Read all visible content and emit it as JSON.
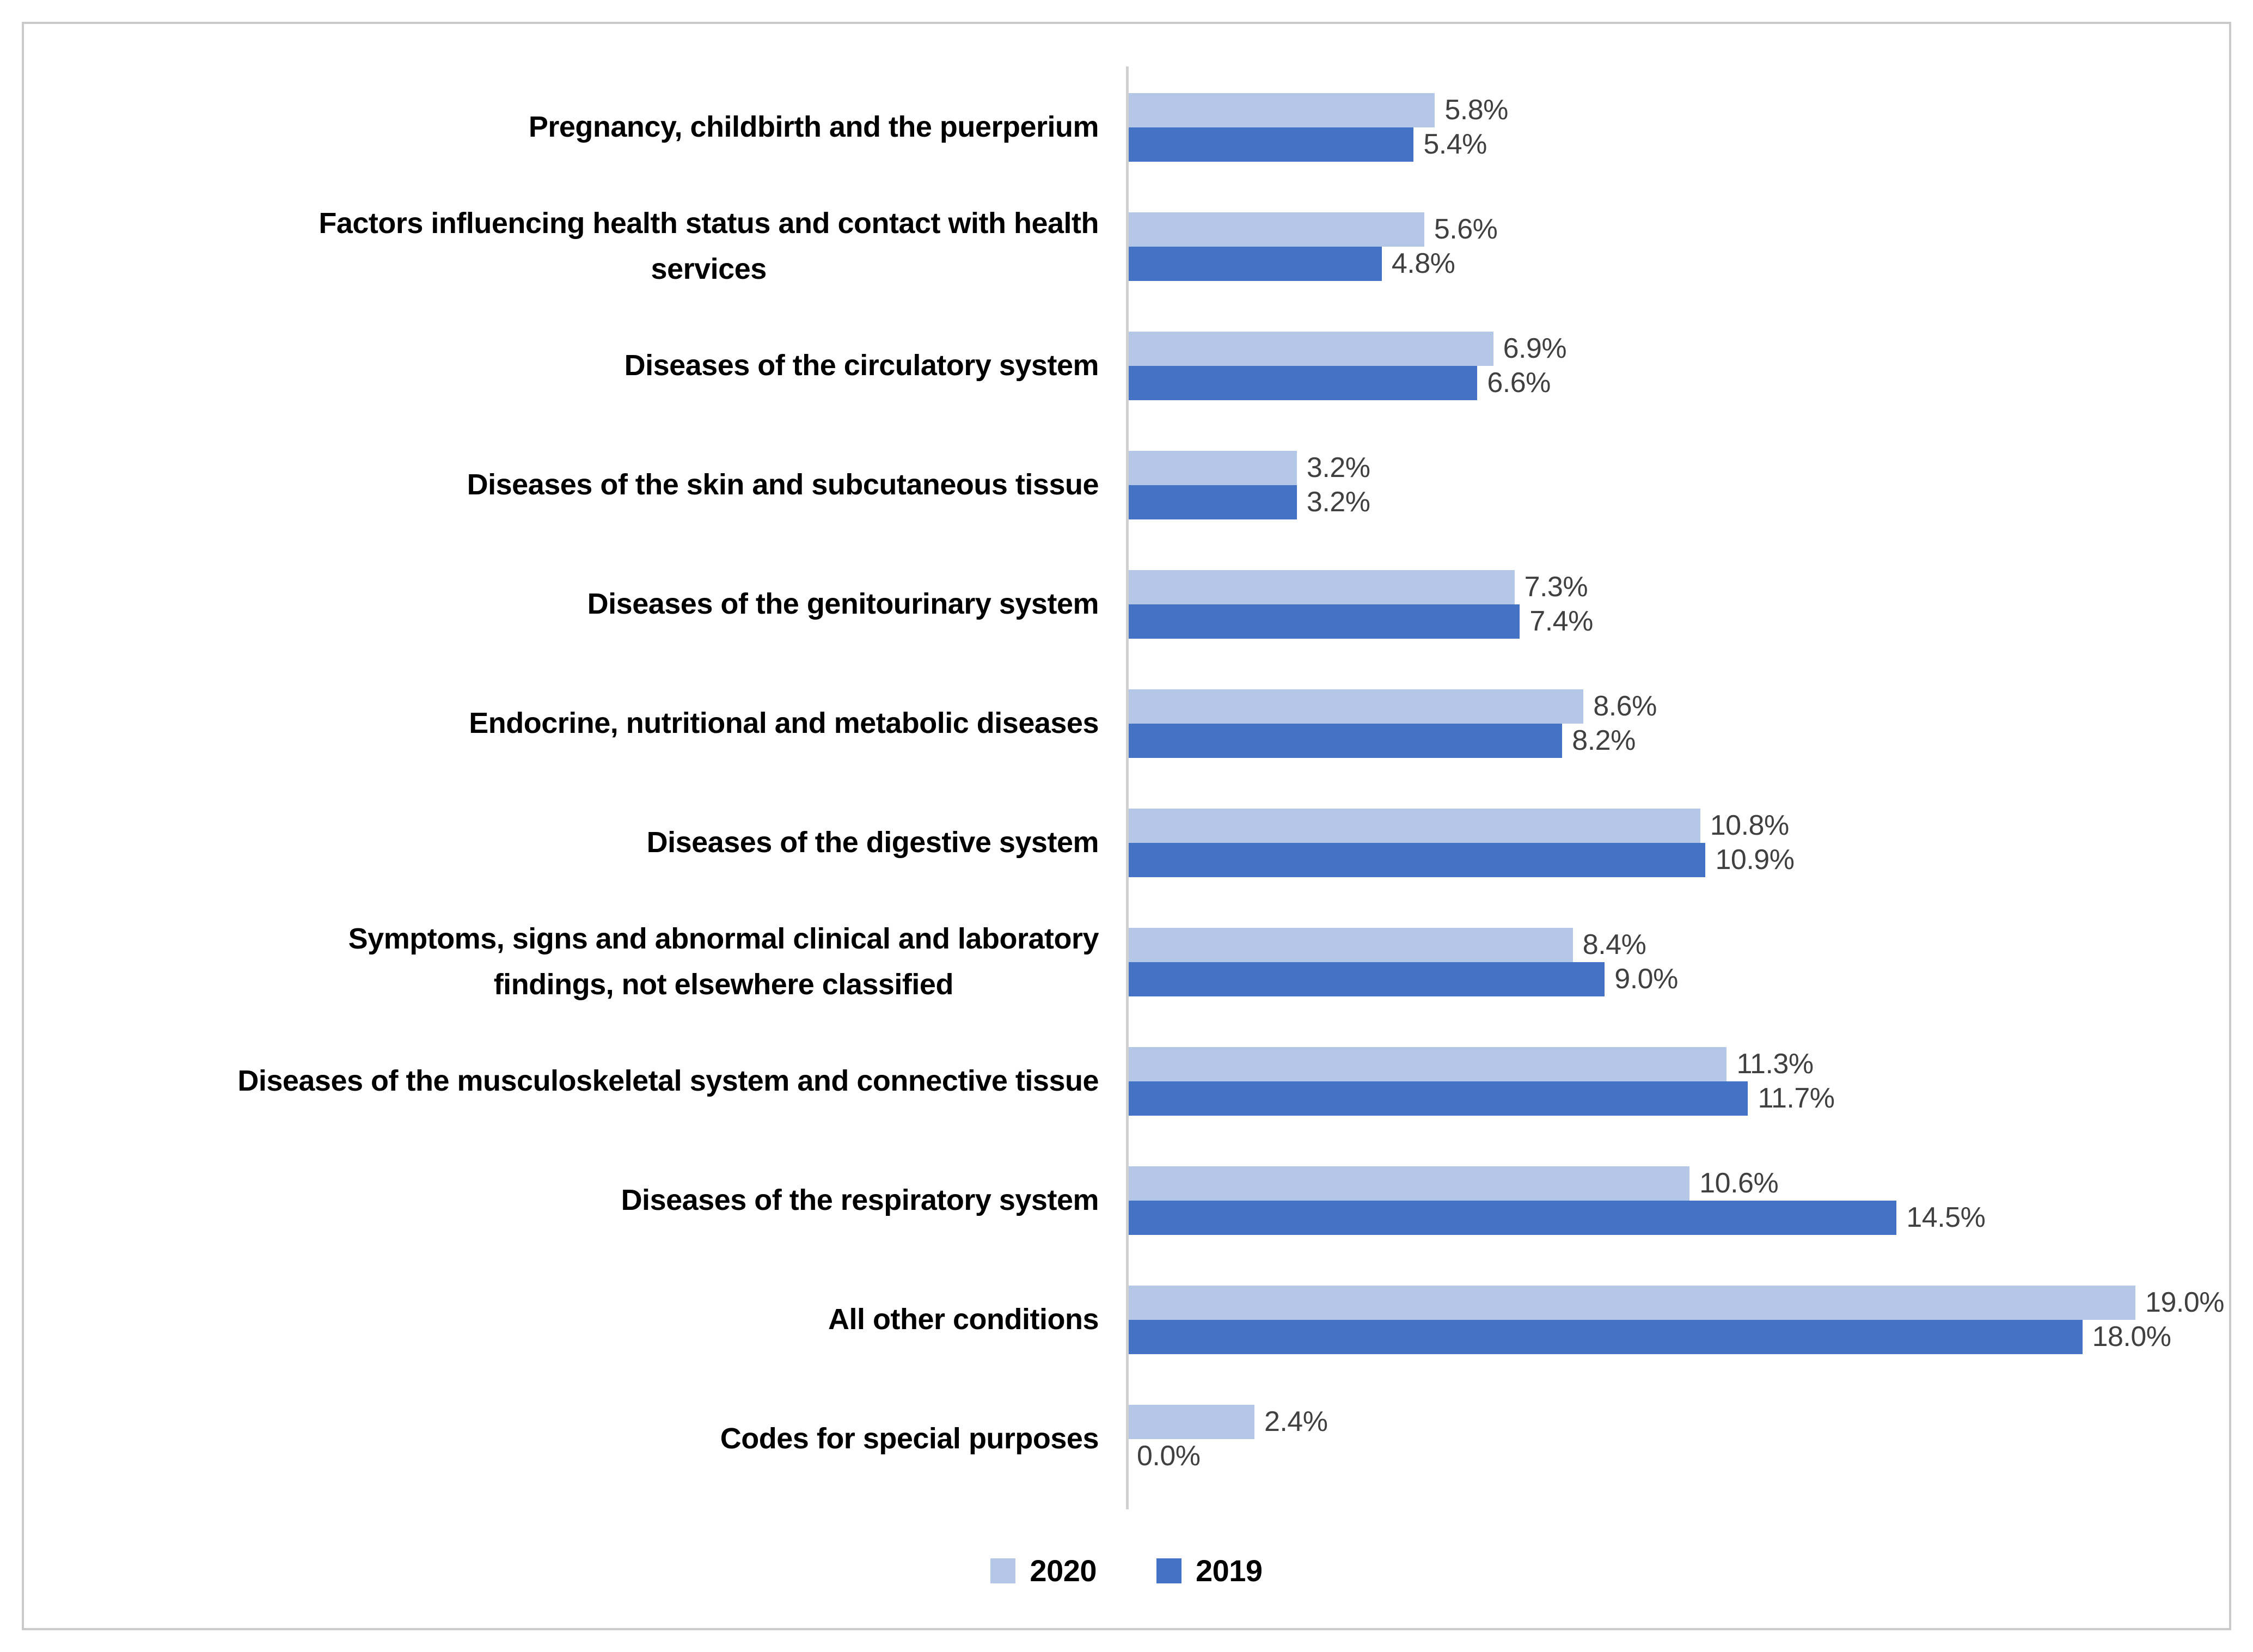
{
  "chart_data": {
    "type": "bar",
    "orientation": "horizontal",
    "title": "",
    "xlabel": "",
    "ylabel": "",
    "xlim": [
      0,
      20.6
    ],
    "grid": false,
    "value_label_color": "#404040",
    "axis_color": "#d0d0d0",
    "frame_border_color": "#c9c9c9",
    "series_order": [
      "2020",
      "2019"
    ],
    "legend": {
      "position": "bottom",
      "entries": [
        {
          "label": "2020",
          "color": "#B4C7E7"
        },
        {
          "label": "2019",
          "color": "#4472C4"
        }
      ]
    },
    "categories": [
      {
        "label_lines": [
          "Pregnancy, childbirth and the puerperium"
        ],
        "values": {
          "2020": 5.8,
          "2019": 5.4
        },
        "display": {
          "2020": "5.8%",
          "2019": "5.4%"
        }
      },
      {
        "label_lines": [
          "Factors influencing health status and contact with health",
          "services"
        ],
        "values": {
          "2020": 5.6,
          "2019": 4.8
        },
        "display": {
          "2020": "5.6%",
          "2019": "4.8%"
        }
      },
      {
        "label_lines": [
          "Diseases of the circulatory system"
        ],
        "values": {
          "2020": 6.9,
          "2019": 6.6
        },
        "display": {
          "2020": "6.9%",
          "2019": "6.6%"
        }
      },
      {
        "label_lines": [
          "Diseases of the skin and subcutaneous tissue"
        ],
        "values": {
          "2020": 3.2,
          "2019": 3.2
        },
        "display": {
          "2020": "3.2%",
          "2019": "3.2%"
        }
      },
      {
        "label_lines": [
          "Diseases of the genitourinary system"
        ],
        "values": {
          "2020": 7.3,
          "2019": 7.4
        },
        "display": {
          "2020": "7.3%",
          "2019": "7.4%"
        }
      },
      {
        "label_lines": [
          "Endocrine, nutritional and metabolic diseases"
        ],
        "values": {
          "2020": 8.6,
          "2019": 8.2
        },
        "display": {
          "2020": "8.6%",
          "2019": "8.2%"
        }
      },
      {
        "label_lines": [
          "Diseases of the digestive system"
        ],
        "values": {
          "2020": 10.8,
          "2019": 10.9
        },
        "display": {
          "2020": "10.8%",
          "2019": "10.9%"
        }
      },
      {
        "label_lines": [
          "Symptoms, signs and abnormal clinical and laboratory",
          "findings, not elsewhere classified"
        ],
        "values": {
          "2020": 8.4,
          "2019": 9.0
        },
        "display": {
          "2020": "8.4%",
          "2019": "9.0%"
        }
      },
      {
        "label_lines": [
          "Diseases of the musculoskeletal system and connective tissue"
        ],
        "values": {
          "2020": 11.3,
          "2019": 11.7
        },
        "display": {
          "2020": "11.3%",
          "2019": "11.7%"
        }
      },
      {
        "label_lines": [
          "Diseases of the respiratory system"
        ],
        "values": {
          "2020": 10.6,
          "2019": 14.5
        },
        "display": {
          "2020": "10.6%",
          "2019": "14.5%"
        }
      },
      {
        "label_lines": [
          "All other conditions"
        ],
        "values": {
          "2020": 19.0,
          "2019": 18.0
        },
        "display": {
          "2020": "19.0%",
          "2019": "18.0%"
        }
      },
      {
        "label_lines": [
          "Codes for special purposes"
        ],
        "values": {
          "2020": 2.4,
          "2019": 0.0
        },
        "display": {
          "2020": "2.4%",
          "2019": "0.0%"
        }
      }
    ]
  }
}
